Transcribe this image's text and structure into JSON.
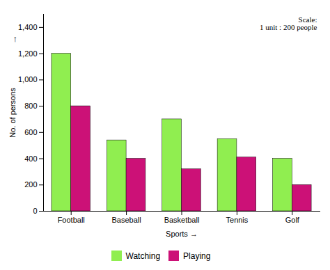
{
  "chart_data": {
    "type": "bar",
    "categories": [
      "Football",
      "Baseball",
      "Basketball",
      "Tennis",
      "Golf"
    ],
    "series": [
      {
        "name": "Watching",
        "color": "#90EE50",
        "values": [
          1200,
          540,
          700,
          550,
          400
        ]
      },
      {
        "name": "Playing",
        "color": "#CC1177",
        "values": [
          800,
          400,
          320,
          410,
          200
        ]
      }
    ],
    "xlabel": "Sports →",
    "ylabel": "No. of persons",
    "annotations": [
      "Scale:\n1 unit : 200 people",
      "↑"
    ],
    "ylim": [
      0,
      1500
    ],
    "yticks": [
      0,
      200,
      400,
      600,
      800,
      1000,
      1200,
      1400
    ],
    "grid": false,
    "legend": "bottom"
  }
}
